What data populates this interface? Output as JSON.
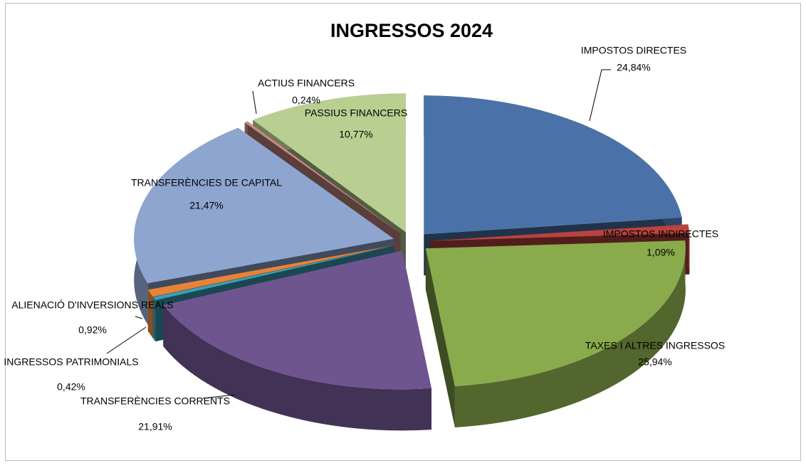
{
  "chart_data": {
    "type": "pie3d",
    "title": "INGRESSOS 2024",
    "categories": [
      "IMPOSTOS DIRECTES",
      "IMPOSTOS INDIRECTES",
      "TAXES I ALTRES INGRESSOS",
      "TRANSFERÈNCIES CORRENTS",
      "INGRESSOS PATRIMONIALS",
      "ALIENACIÓ D'INVERSIONS REALS",
      "TRANSFERÈNCIES DE CAPITAL",
      "ACTIUS FINANCERS",
      "PASSIUS FINANCERS"
    ],
    "values": [
      24.84,
      1.09,
      25.94,
      21.91,
      0.42,
      0.92,
      21.47,
      0.24,
      10.77
    ],
    "value_labels": [
      "24,84%",
      "1,09%",
      "25,94%",
      "21,91%",
      "0,42%",
      "0,92%",
      "21,47%",
      "0,24%",
      "10,77%"
    ],
    "colors": [
      "#4a72a8",
      "#b8433f",
      "#8aab4c",
      "#6f5590",
      "#3aa0b8",
      "#e8823a",
      "#8ea5d0",
      "#c98a86",
      "#b9cf92"
    ]
  }
}
